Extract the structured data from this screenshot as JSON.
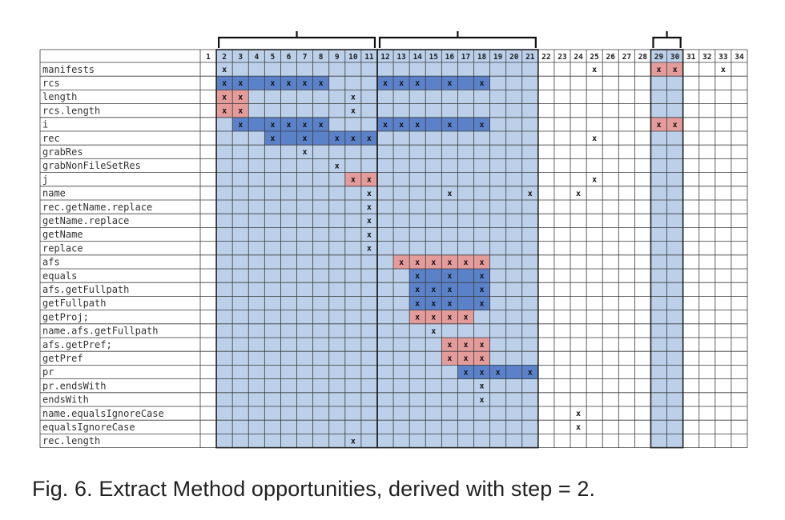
{
  "figure": {
    "caption": "Fig. 6. Extract Method opportunities, derived with step = 2.",
    "columns": [
      "1",
      "2",
      "3",
      "4",
      "5",
      "6",
      "7",
      "8",
      "9",
      "10",
      "11",
      "12",
      "13",
      "14",
      "15",
      "16",
      "17",
      "18",
      "19",
      "20",
      "21",
      "22",
      "23",
      "24",
      "25",
      "26",
      "27",
      "28",
      "29",
      "30",
      "31",
      "32",
      "33",
      "34"
    ],
    "rows": [
      {
        "label": "manifests",
        "marks": [
          2,
          25,
          29,
          30,
          33
        ],
        "red": [
          29,
          30
        ],
        "blue": []
      },
      {
        "label": "rcs",
        "marks": [
          2,
          3,
          5,
          6,
          7,
          8,
          12,
          13,
          14,
          16,
          18
        ],
        "red": [],
        "blue": [
          2,
          3,
          4,
          5,
          6,
          7,
          8,
          12,
          13,
          14,
          15,
          16,
          17,
          18
        ]
      },
      {
        "label": "length",
        "marks": [
          2,
          3,
          10
        ],
        "red": [
          2,
          3
        ],
        "blue": []
      },
      {
        "label": "rcs.length",
        "marks": [
          2,
          3,
          10
        ],
        "red": [
          2,
          3
        ],
        "blue": []
      },
      {
        "label": "i",
        "marks": [
          3,
          5,
          6,
          7,
          8,
          12,
          13,
          14,
          16,
          18,
          29,
          30
        ],
        "red": [
          29,
          30
        ],
        "blue": [
          3,
          4,
          5,
          6,
          7,
          8,
          12,
          13,
          14,
          15,
          16,
          17,
          18
        ]
      },
      {
        "label": "rec",
        "marks": [
          5,
          7,
          9,
          10,
          11,
          25
        ],
        "red": [],
        "blue": [
          5,
          6,
          7,
          8,
          9,
          10,
          11
        ]
      },
      {
        "label": "grabRes",
        "marks": [
          7
        ],
        "red": [],
        "blue": []
      },
      {
        "label": "grabNonFileSetRes",
        "marks": [
          9
        ],
        "red": [],
        "blue": []
      },
      {
        "label": "j",
        "marks": [
          10,
          11,
          25
        ],
        "red": [
          10,
          11
        ],
        "blue": []
      },
      {
        "label": "name",
        "marks": [
          11,
          16,
          21,
          24
        ],
        "red": [],
        "blue": []
      },
      {
        "label": "rec.getName.replace",
        "marks": [
          11
        ],
        "red": [],
        "blue": []
      },
      {
        "label": "getName.replace",
        "marks": [
          11
        ],
        "red": [],
        "blue": []
      },
      {
        "label": "getName",
        "marks": [
          11
        ],
        "red": [],
        "blue": []
      },
      {
        "label": "replace",
        "marks": [
          11
        ],
        "red": [],
        "blue": []
      },
      {
        "label": "afs",
        "marks": [
          13,
          14,
          15,
          16,
          17,
          18
        ],
        "red": [
          13,
          14,
          15,
          16,
          17,
          18
        ],
        "blue": []
      },
      {
        "label": "equals",
        "marks": [
          14,
          16,
          18
        ],
        "red": [],
        "blue": [
          14,
          15,
          16,
          17,
          18
        ]
      },
      {
        "label": "afs.getFullpath",
        "marks": [
          14,
          15,
          16,
          18
        ],
        "red": [],
        "blue": [
          14,
          15,
          16,
          17,
          18
        ]
      },
      {
        "label": "getFullpath",
        "marks": [
          14,
          15,
          16,
          18
        ],
        "red": [],
        "blue": [
          14,
          15,
          16,
          17,
          18
        ]
      },
      {
        "label": "getProj;",
        "marks": [
          14,
          15,
          16,
          17
        ],
        "red": [
          14,
          15,
          16,
          17
        ],
        "blue": []
      },
      {
        "label": "name.afs.getFullpath",
        "marks": [
          15
        ],
        "red": [],
        "blue": []
      },
      {
        "label": "afs.getPref;",
        "marks": [
          16,
          17,
          18
        ],
        "red": [
          16,
          17,
          18
        ],
        "blue": []
      },
      {
        "label": "getPref",
        "marks": [
          16,
          17,
          18
        ],
        "red": [
          16,
          17,
          18
        ],
        "blue": []
      },
      {
        "label": "pr",
        "marks": [
          17,
          18,
          19,
          21
        ],
        "red": [],
        "blue": [
          17,
          18,
          19,
          20,
          21
        ]
      },
      {
        "label": "pr.endsWith",
        "marks": [
          18
        ],
        "red": [],
        "blue": []
      },
      {
        "label": "endsWith",
        "marks": [
          18
        ],
        "red": [],
        "blue": []
      },
      {
        "label": "name.equalsIgnoreCase",
        "marks": [
          24
        ],
        "red": [],
        "blue": []
      },
      {
        "label": "equalsIgnoreCase",
        "marks": [
          24
        ],
        "red": [],
        "blue": []
      },
      {
        "label": "rec.length",
        "marks": [
          10
        ],
        "red": [],
        "blue": []
      }
    ],
    "shaded_ranges": [
      [
        2,
        11
      ],
      [
        12,
        21
      ],
      [
        29,
        30
      ]
    ],
    "mark_glyph": "x",
    "colors": {
      "light_band": "#bcd0ea",
      "dark_blue": "#5b82c9",
      "red": "#e49c9a",
      "grid": "#3a3a3a",
      "label_bg": "#ffffff"
    }
  }
}
